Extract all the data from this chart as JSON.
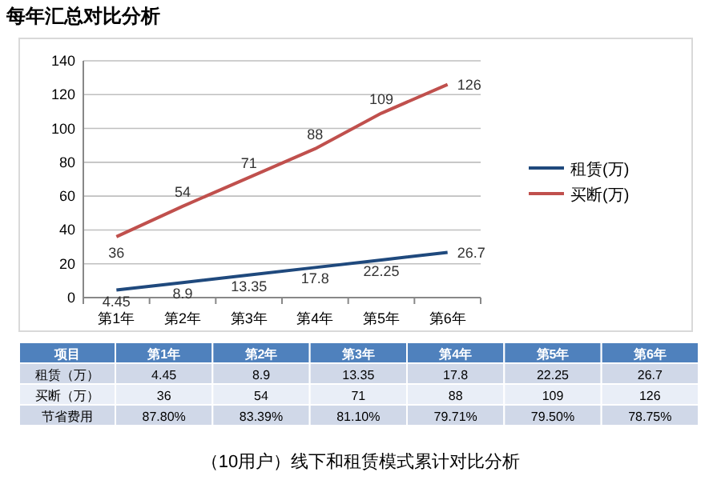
{
  "chart_data": {
    "type": "line",
    "title": "每年汇总对比分析",
    "categories": [
      "第1年",
      "第2年",
      "第3年",
      "第4年",
      "第5年",
      "第6年"
    ],
    "series": [
      {
        "name": "租赁(万)",
        "color": "#1f497d",
        "values": [
          4.45,
          8.9,
          13.35,
          17.8,
          22.25,
          26.7
        ]
      },
      {
        "name": "买断(万)",
        "color": "#c0504d",
        "values": [
          36,
          54,
          71,
          88,
          109,
          126
        ]
      }
    ],
    "ylim": [
      0,
      140
    ],
    "yticks": [
      0,
      20,
      40,
      60,
      80,
      100,
      120,
      140
    ],
    "grid": "y",
    "legend": "right",
    "marker": "none",
    "line_style": "solid",
    "data_labels": true,
    "annotations": [
      "项目",
      "租赁（万）",
      "4.45",
      "8.9",
      "13.35",
      "17.8",
      "22.25",
      "26.7",
      "买断（万）",
      "36",
      "54",
      "71",
      "88",
      "109",
      "126",
      "节省费用",
      "87.80%",
      "83.39%",
      "81.10%",
      "79.71%",
      "79.50%",
      "78.75%",
      "（10用户）线下和租赁模式累计对比分析"
    ]
  }
}
